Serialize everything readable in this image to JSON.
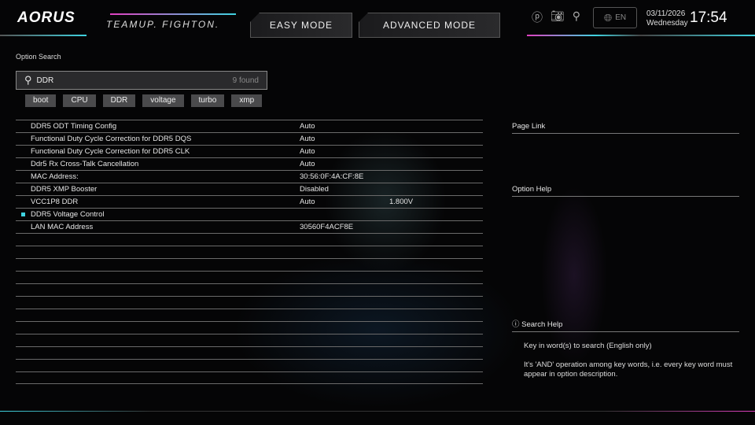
{
  "header": {
    "logo": "AORUS",
    "slogan": "TEAMUP. FIGHTON.",
    "easy_mode": "EASY MODE",
    "advanced_mode": "ADVANCED MODE",
    "language": "EN",
    "date": "03/11/2026",
    "weekday": "Wednesday",
    "time": "17:54",
    "icons": [
      "help-icon",
      "camera-icon",
      "search-icon",
      "globe-icon"
    ]
  },
  "search": {
    "label": "Option Search",
    "value": "DDR",
    "found": "9 found",
    "tags": [
      "boot",
      "CPU",
      "DDR",
      "voltage",
      "turbo",
      "xmp"
    ]
  },
  "results": [
    {
      "name": "DDR5 ODT Timing Config",
      "value": "Auto",
      "extra": ""
    },
    {
      "name": "Functional Duty Cycle Correction for DDR5 DQS",
      "value": "Auto",
      "extra": ""
    },
    {
      "name": "Functional Duty Cycle Correction for DDR5 CLK",
      "value": "Auto",
      "extra": ""
    },
    {
      "name": "Ddr5 Rx Cross-Talk Cancellation",
      "value": "Auto",
      "extra": ""
    },
    {
      "name": "MAC Address:",
      "value": "30:56:0F:4A:CF:8E",
      "extra": ""
    },
    {
      "name": "DDR5 XMP Booster",
      "value": "Disabled",
      "extra": ""
    },
    {
      "name": "VCC1P8 DDR",
      "value": "Auto",
      "extra": "1.800V"
    },
    {
      "name": "DDR5 Voltage Control",
      "value": "",
      "extra": "",
      "submenu": true
    },
    {
      "name": "LAN MAC Address",
      "value": "30560F4ACF8E",
      "extra": ""
    }
  ],
  "side": {
    "page_link": "Page Link",
    "option_help": "Option Help",
    "search_help": "Search Help",
    "help_lines": [
      "Key in word(s) to search (English only)",
      "It's 'AND' operation among key words, i.e. every key word must appear in option description."
    ]
  },
  "colors": {
    "accent_cyan": "#3fd3e0",
    "accent_pink": "#e040c0"
  }
}
